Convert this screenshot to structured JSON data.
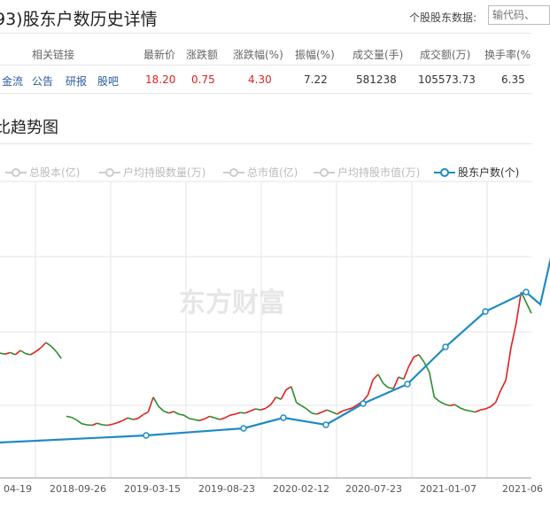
{
  "header": {
    "title": "93)股东户数历史详情",
    "search_label": "个股股东数据:",
    "search_placeholder": "输代码、"
  },
  "quote_table": {
    "headers": [
      "相关链接",
      "最新价",
      "涨跌额",
      "涨跌幅(%)",
      "振幅(%)",
      "成交量(手)",
      "成交额(万)",
      "换手率(%"
    ],
    "links": [
      "金流",
      "公告",
      "研报",
      "股吧"
    ],
    "values": {
      "latest_price": "18.20",
      "change": "0.75",
      "change_pct": "4.30",
      "amplitude": "7.22",
      "volume": "581238",
      "turnover": "105573.73",
      "turnover_rate": "6.35"
    },
    "up_color": "#e02020"
  },
  "section_title": "比趋势图",
  "legend": [
    {
      "label": "总股本(亿)",
      "active": false
    },
    {
      "label": "户均持股数量(万)",
      "active": false
    },
    {
      "label": "总市值(亿)",
      "active": false
    },
    {
      "label": "户均持股市值(万)",
      "active": false
    },
    {
      "label": "股东户数(个)",
      "active": true
    }
  ],
  "watermark": "东方财富",
  "chart_data": {
    "type": "line",
    "x_tick_labels": [
      "04-19",
      "2018-09-26",
      "2019-03-15",
      "2019-08-23",
      "2020-02-12",
      "2020-07-23",
      "2021-01-07",
      "2021-06"
    ],
    "series": [
      {
        "name": "股东户数(个)",
        "color": "#1e8bc3",
        "values": [
          2.0,
          2.4,
          2.8,
          3.4,
          3.0,
          4.2,
          5.3,
          7.4,
          9.4,
          10.5,
          9.8,
          14.2,
          15.8
        ]
      }
    ],
    "background_price_series": {
      "color_up": "#e02020",
      "color_down": "#2e8b2e",
      "values": [
        18.5,
        18.3,
        18.6,
        18.2,
        19.0,
        18.4,
        18.2,
        18.8,
        19.5,
        20.5,
        19.8,
        18.8,
        17.5,
        6.6,
        6.4,
        5.9,
        5.2,
        5.0,
        4.9,
        5.3,
        5.0,
        4.9,
        5.1,
        5.4,
        5.8,
        6.3,
        6.0,
        6.2,
        6.9,
        7.4,
        10.2,
        8.5,
        7.6,
        7.2,
        7.5,
        7.0,
        6.8,
        6.2,
        6.0,
        5.8,
        6.1,
        6.6,
        6.3,
        6.0,
        6.3,
        6.8,
        7.0,
        7.3,
        7.2,
        7.6,
        8.0,
        7.8,
        8.1,
        8.8,
        10.2,
        9.8,
        11.6,
        12.2,
        9.2,
        8.6,
        8.0,
        7.2,
        7.0,
        7.4,
        7.8,
        7.4,
        7.0,
        7.6,
        7.9,
        8.2,
        8.8,
        9.4,
        10.6,
        13.5,
        14.5,
        12.8,
        12.0,
        11.8,
        14.0,
        13.6,
        16.0,
        17.8,
        18.2,
        16.8,
        15.0,
        10.2,
        9.4,
        8.9,
        8.6,
        8.8,
        8.2,
        7.8,
        7.6,
        7.4,
        7.8,
        8.0,
        8.4,
        9.2,
        11.5,
        13.4,
        19.5,
        24.0,
        30.0,
        28.0,
        26.0
      ]
    }
  }
}
